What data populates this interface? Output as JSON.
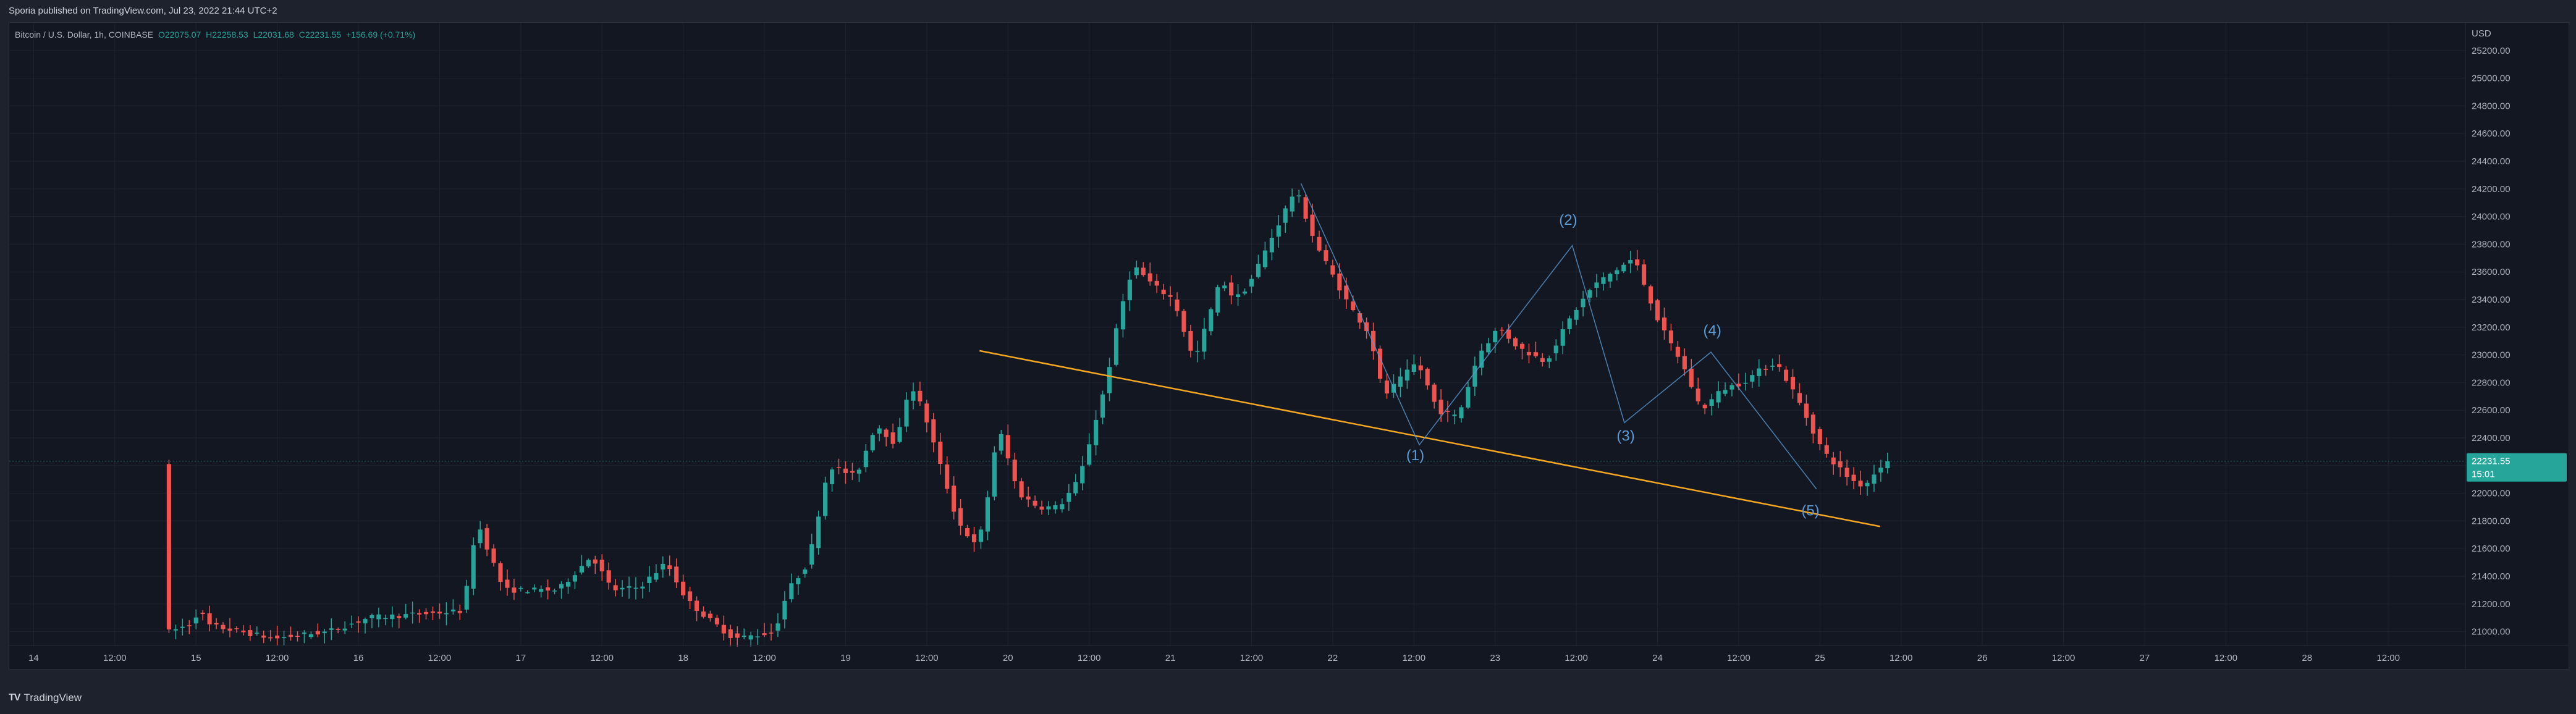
{
  "header": {
    "published": "Sporia published on TradingView.com, Jul 23, 2022 21:44 UTC+2"
  },
  "legend": {
    "symbol": "Bitcoin / U.S. Dollar, 1h, COINBASE",
    "open": "22075.07",
    "high": "22258.53",
    "low": "22031.68",
    "close": "22231.55",
    "change": "+156.69 (+0.71%)"
  },
  "footer": {
    "brand": "TradingView"
  },
  "colors": {
    "up": "#26a69a",
    "down": "#ef5350",
    "trendline": "#f5a623",
    "wave": "#5b9bd5",
    "background": "#131722"
  },
  "chart_data": {
    "type": "candlestick",
    "symbol": "BTCUSD",
    "price_currency": "USD",
    "ylim": [
      20900,
      25400
    ],
    "y_ticks": [
      21000,
      21200,
      21400,
      21600,
      21800,
      22000,
      22200,
      22400,
      22600,
      22800,
      23000,
      23200,
      23400,
      23600,
      23800,
      24000,
      24200,
      24400,
      24600,
      24800,
      25000,
      25200
    ],
    "x_tick_labels": [
      "14",
      "12:00",
      "15",
      "12:00",
      "16",
      "12:00",
      "17",
      "12:00",
      "18",
      "12:00",
      "19",
      "12:00",
      "20",
      "12:00",
      "21",
      "12:00",
      "22",
      "12:00",
      "23",
      "12:00",
      "24",
      "12:00",
      "25",
      "12:00",
      "26",
      "12:00",
      "27",
      "12:00",
      "28",
      "12:00"
    ],
    "x_tick_hours": [
      0,
      12,
      24,
      36,
      48,
      60,
      72,
      84,
      96,
      108,
      120,
      132,
      144,
      156,
      168,
      180,
      192,
      204,
      216,
      228,
      240,
      252,
      264,
      276,
      288,
      300,
      312,
      324,
      336,
      348
    ],
    "x_start_hour": -3.6,
    "x_end_hour": 359.4,
    "current_price": {
      "label": "BTCUSD",
      "value": "22231.55",
      "countdown": "15:01"
    },
    "anchors": [
      [
        20,
        20990
      ],
      [
        24,
        21060
      ],
      [
        25,
        21180
      ],
      [
        26,
        21050
      ],
      [
        36,
        20950
      ],
      [
        44,
        21000
      ],
      [
        50,
        21100
      ],
      [
        64,
        21150
      ],
      [
        66,
        21800
      ],
      [
        70,
        21300
      ],
      [
        73,
        21300
      ],
      [
        78,
        21300
      ],
      [
        83,
        21550
      ],
      [
        86,
        21300
      ],
      [
        90,
        21320
      ],
      [
        94,
        21500
      ],
      [
        97,
        21230
      ],
      [
        100,
        21100
      ],
      [
        104,
        20950
      ],
      [
        108,
        20980
      ],
      [
        110,
        21000
      ],
      [
        112,
        21300
      ],
      [
        115,
        21500
      ],
      [
        118,
        22200
      ],
      [
        122,
        22120
      ],
      [
        125,
        22500
      ],
      [
        128,
        22350
      ],
      [
        130,
        22800
      ],
      [
        132,
        22600
      ],
      [
        137,
        21800
      ],
      [
        140,
        21600
      ],
      [
        142,
        22100
      ],
      [
        143,
        22500
      ],
      [
        146,
        22000
      ],
      [
        149,
        21900
      ],
      [
        152,
        21900
      ],
      [
        155,
        22100
      ],
      [
        159,
        22800
      ],
      [
        161,
        23300
      ],
      [
        163,
        23650
      ],
      [
        166,
        23500
      ],
      [
        169,
        23400
      ],
      [
        172,
        22950
      ],
      [
        176,
        23550
      ],
      [
        178,
        23400
      ],
      [
        180,
        23500
      ],
      [
        183,
        23800
      ],
      [
        187,
        24200
      ],
      [
        190,
        23800
      ],
      [
        195,
        23350
      ],
      [
        198,
        23150
      ],
      [
        200,
        22700
      ],
      [
        202,
        22800
      ],
      [
        205,
        22950
      ],
      [
        208,
        22600
      ],
      [
        211,
        22550
      ],
      [
        214,
        23000
      ],
      [
        217,
        23200
      ],
      [
        220,
        23050
      ],
      [
        224,
        22950
      ],
      [
        228,
        23300
      ],
      [
        231,
        23500
      ],
      [
        234,
        23600
      ],
      [
        237,
        23700
      ],
      [
        241,
        23200
      ],
      [
        244,
        22950
      ],
      [
        247,
        22600
      ],
      [
        250,
        22750
      ],
      [
        253,
        22800
      ],
      [
        256,
        22900
      ],
      [
        258,
        22950
      ],
      [
        261,
        22700
      ],
      [
        265,
        22300
      ],
      [
        267,
        22200
      ],
      [
        269,
        22100
      ],
      [
        271,
        22050
      ],
      [
        274,
        22231
      ]
    ],
    "trendline": {
      "start": [
        139.8,
        23030
      ],
      "end": [
        272.9,
        21760
      ]
    },
    "wave_path": [
      [
        187.3,
        24240
      ],
      [
        204.8,
        22350
      ],
      [
        227.4,
        23790
      ],
      [
        235.1,
        22510
      ],
      [
        247.9,
        23020
      ],
      [
        263.5,
        22030
      ]
    ],
    "wave_labels": [
      {
        "text": "(1)",
        "x": 204.2,
        "y": 22240
      },
      {
        "text": "(2)",
        "x": 226.8,
        "y": 23940
      },
      {
        "text": "(3)",
        "x": 235.3,
        "y": 22380
      },
      {
        "text": "(4)",
        "x": 248.1,
        "y": 23140
      },
      {
        "text": "(5)",
        "x": 262.6,
        "y": 21840
      }
    ]
  }
}
